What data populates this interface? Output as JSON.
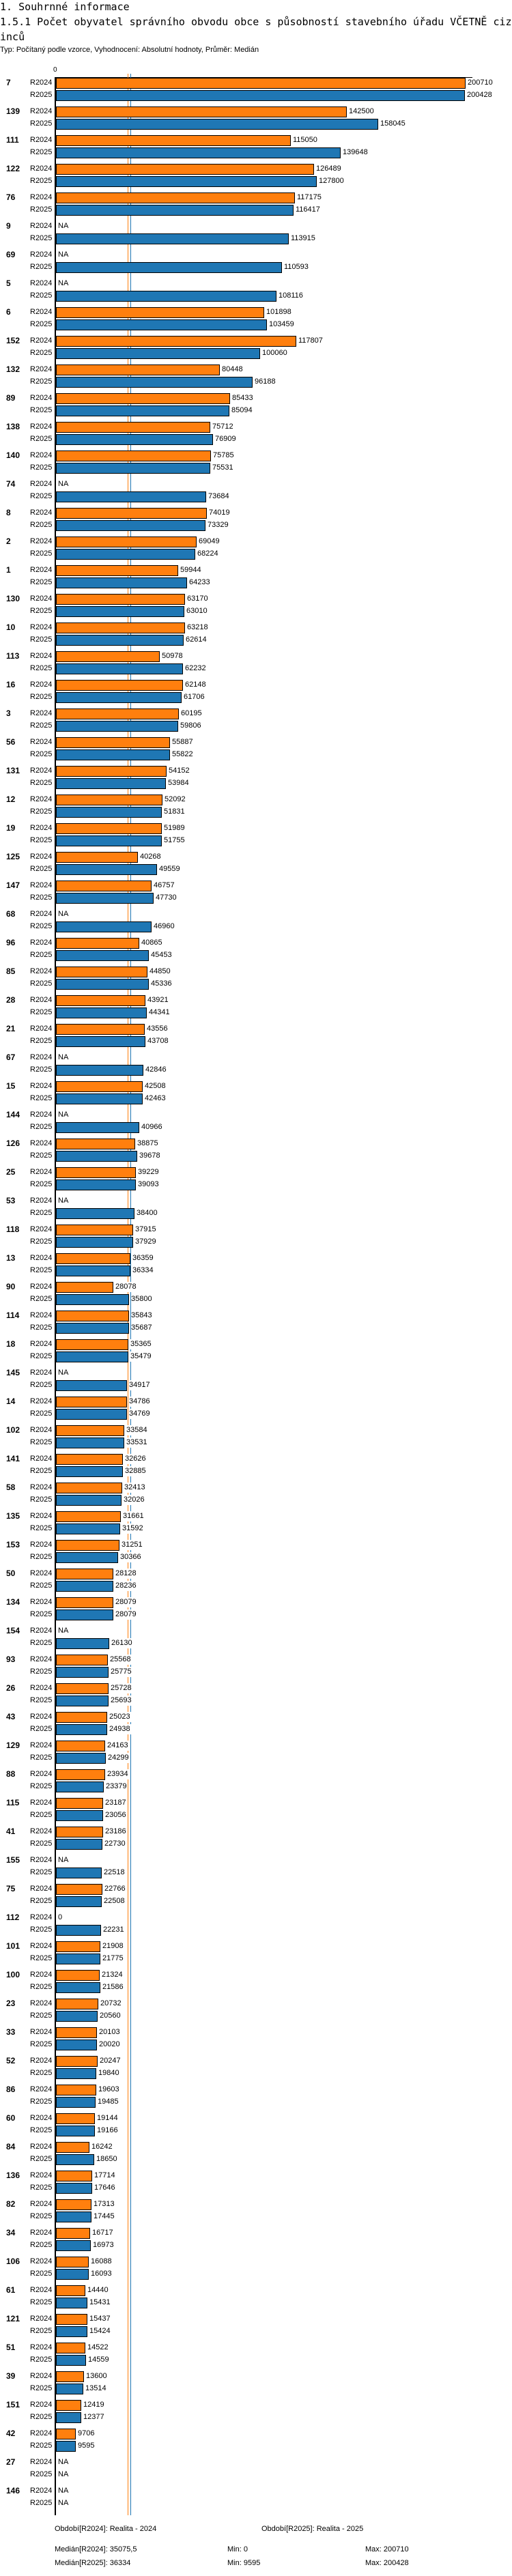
{
  "header": {
    "section_title": "1. Souhrnné informace",
    "chart_title": "1.5.1 Počet obyvatel správního obvodu obce s působností stavebního úřadu VČETNĚ cizinců",
    "subtitle": "Typ: Počítaný podle vzorce, Vyhodnocení: Absolutní hodnoty, Průměr: Medián"
  },
  "colors": {
    "R2024": "#ff7f0e",
    "R2025": "#1f77b4"
  },
  "chart_data": {
    "type": "bar",
    "orientation": "horizontal",
    "axis_zero_label": "0",
    "xlim": [
      0,
      200710
    ],
    "na_label": "NA",
    "series_names": [
      "R2024",
      "R2025"
    ],
    "medians": [
      35075.5,
      36334
    ],
    "groups": [
      {
        "id": "7",
        "values": [
          200710,
          200428
        ]
      },
      {
        "id": "139",
        "values": [
          142500,
          158045
        ]
      },
      {
        "id": "111",
        "values": [
          115050,
          139648
        ]
      },
      {
        "id": "122",
        "values": [
          126489,
          127800
        ]
      },
      {
        "id": "76",
        "values": [
          117175,
          116417
        ]
      },
      {
        "id": "9",
        "values": [
          null,
          113915
        ]
      },
      {
        "id": "69",
        "values": [
          null,
          110593
        ]
      },
      {
        "id": "5",
        "values": [
          null,
          108116
        ]
      },
      {
        "id": "6",
        "values": [
          101898,
          103459
        ]
      },
      {
        "id": "152",
        "values": [
          117807,
          100060
        ]
      },
      {
        "id": "132",
        "values": [
          80448,
          96188
        ]
      },
      {
        "id": "89",
        "values": [
          85433,
          85094
        ]
      },
      {
        "id": "138",
        "values": [
          75712,
          76909
        ]
      },
      {
        "id": "140",
        "values": [
          75785,
          75531
        ]
      },
      {
        "id": "74",
        "values": [
          null,
          73684
        ]
      },
      {
        "id": "8",
        "values": [
          74019,
          73329
        ]
      },
      {
        "id": "2",
        "values": [
          69049,
          68224
        ]
      },
      {
        "id": "1",
        "values": [
          59944,
          64233
        ]
      },
      {
        "id": "130",
        "values": [
          63170,
          63010
        ]
      },
      {
        "id": "10",
        "values": [
          63218,
          62614
        ]
      },
      {
        "id": "113",
        "values": [
          50978,
          62232
        ]
      },
      {
        "id": "16",
        "values": [
          62148,
          61706
        ]
      },
      {
        "id": "3",
        "values": [
          60195,
          59806
        ]
      },
      {
        "id": "56",
        "values": [
          55887,
          55822
        ]
      },
      {
        "id": "131",
        "values": [
          54152,
          53984
        ]
      },
      {
        "id": "12",
        "values": [
          52092,
          51831
        ]
      },
      {
        "id": "19",
        "values": [
          51989,
          51755
        ]
      },
      {
        "id": "125",
        "values": [
          40268,
          49559
        ]
      },
      {
        "id": "147",
        "values": [
          46757,
          47730
        ]
      },
      {
        "id": "68",
        "values": [
          null,
          46960
        ]
      },
      {
        "id": "96",
        "values": [
          40865,
          45453
        ]
      },
      {
        "id": "85",
        "values": [
          44850,
          45336
        ]
      },
      {
        "id": "28",
        "values": [
          43921,
          44341
        ]
      },
      {
        "id": "21",
        "values": [
          43556,
          43708
        ]
      },
      {
        "id": "67",
        "values": [
          null,
          42846
        ]
      },
      {
        "id": "15",
        "values": [
          42508,
          42463
        ]
      },
      {
        "id": "144",
        "values": [
          null,
          40966
        ]
      },
      {
        "id": "126",
        "values": [
          38875,
          39678
        ]
      },
      {
        "id": "25",
        "values": [
          39229,
          39093
        ]
      },
      {
        "id": "53",
        "values": [
          null,
          38400
        ]
      },
      {
        "id": "118",
        "values": [
          37915,
          37929
        ]
      },
      {
        "id": "13",
        "values": [
          36359,
          36334
        ]
      },
      {
        "id": "90",
        "values": [
          28078,
          35800
        ]
      },
      {
        "id": "114",
        "values": [
          35843,
          35687
        ]
      },
      {
        "id": "18",
        "values": [
          35365,
          35479
        ]
      },
      {
        "id": "145",
        "values": [
          null,
          34917
        ]
      },
      {
        "id": "14",
        "values": [
          34786,
          34769
        ]
      },
      {
        "id": "102",
        "values": [
          33584,
          33531
        ]
      },
      {
        "id": "141",
        "values": [
          32626,
          32885
        ]
      },
      {
        "id": "58",
        "values": [
          32413,
          32026
        ]
      },
      {
        "id": "135",
        "values": [
          31661,
          31592
        ]
      },
      {
        "id": "153",
        "values": [
          31251,
          30366
        ]
      },
      {
        "id": "50",
        "values": [
          28128,
          28236
        ]
      },
      {
        "id": "134",
        "values": [
          28079,
          28079
        ]
      },
      {
        "id": "154",
        "values": [
          null,
          26130
        ]
      },
      {
        "id": "93",
        "values": [
          25568,
          25775
        ]
      },
      {
        "id": "26",
        "values": [
          25728,
          25693
        ]
      },
      {
        "id": "43",
        "values": [
          25023,
          24938
        ]
      },
      {
        "id": "129",
        "values": [
          24163,
          24299
        ]
      },
      {
        "id": "88",
        "values": [
          23934,
          23379
        ]
      },
      {
        "id": "115",
        "values": [
          23187,
          23056
        ]
      },
      {
        "id": "41",
        "values": [
          23186,
          22730
        ]
      },
      {
        "id": "155",
        "values": [
          null,
          22518
        ]
      },
      {
        "id": "75",
        "values": [
          22766,
          22508
        ]
      },
      {
        "id": "112",
        "values": [
          0,
          22231
        ]
      },
      {
        "id": "101",
        "values": [
          21908,
          21775
        ]
      },
      {
        "id": "100",
        "values": [
          21324,
          21586
        ]
      },
      {
        "id": "23",
        "values": [
          20732,
          20560
        ]
      },
      {
        "id": "33",
        "values": [
          20103,
          20020
        ]
      },
      {
        "id": "52",
        "values": [
          20247,
          19840
        ]
      },
      {
        "id": "86",
        "values": [
          19603,
          19485
        ]
      },
      {
        "id": "60",
        "values": [
          19144,
          19166
        ]
      },
      {
        "id": "84",
        "values": [
          16242,
          18650
        ]
      },
      {
        "id": "136",
        "values": [
          17714,
          17646
        ]
      },
      {
        "id": "82",
        "values": [
          17313,
          17445
        ]
      },
      {
        "id": "34",
        "values": [
          16717,
          16973
        ]
      },
      {
        "id": "106",
        "values": [
          16088,
          16093
        ]
      },
      {
        "id": "61",
        "values": [
          14440,
          15431
        ]
      },
      {
        "id": "121",
        "values": [
          15437,
          15424
        ]
      },
      {
        "id": "51",
        "values": [
          14522,
          14559
        ]
      },
      {
        "id": "39",
        "values": [
          13600,
          13514
        ]
      },
      {
        "id": "151",
        "values": [
          12419,
          12377
        ]
      },
      {
        "id": "42",
        "values": [
          9706,
          9595
        ]
      },
      {
        "id": "27",
        "values": [
          null,
          null
        ]
      },
      {
        "id": "146",
        "values": [
          null,
          null
        ]
      }
    ]
  },
  "legend": {
    "period_r2024": "Období[R2024]: Realita - 2024",
    "period_r2025": "Období[R2025]: Realita - 2025",
    "median_r2024": "Medián[R2024]: 35075,5",
    "median_r2025": "Medián[R2025]: 36334",
    "min_r2024": "Min: 0",
    "min_r2025": "Min: 9595",
    "max_r2024": "Max: 200710",
    "max_r2025": "Max: 200428"
  }
}
